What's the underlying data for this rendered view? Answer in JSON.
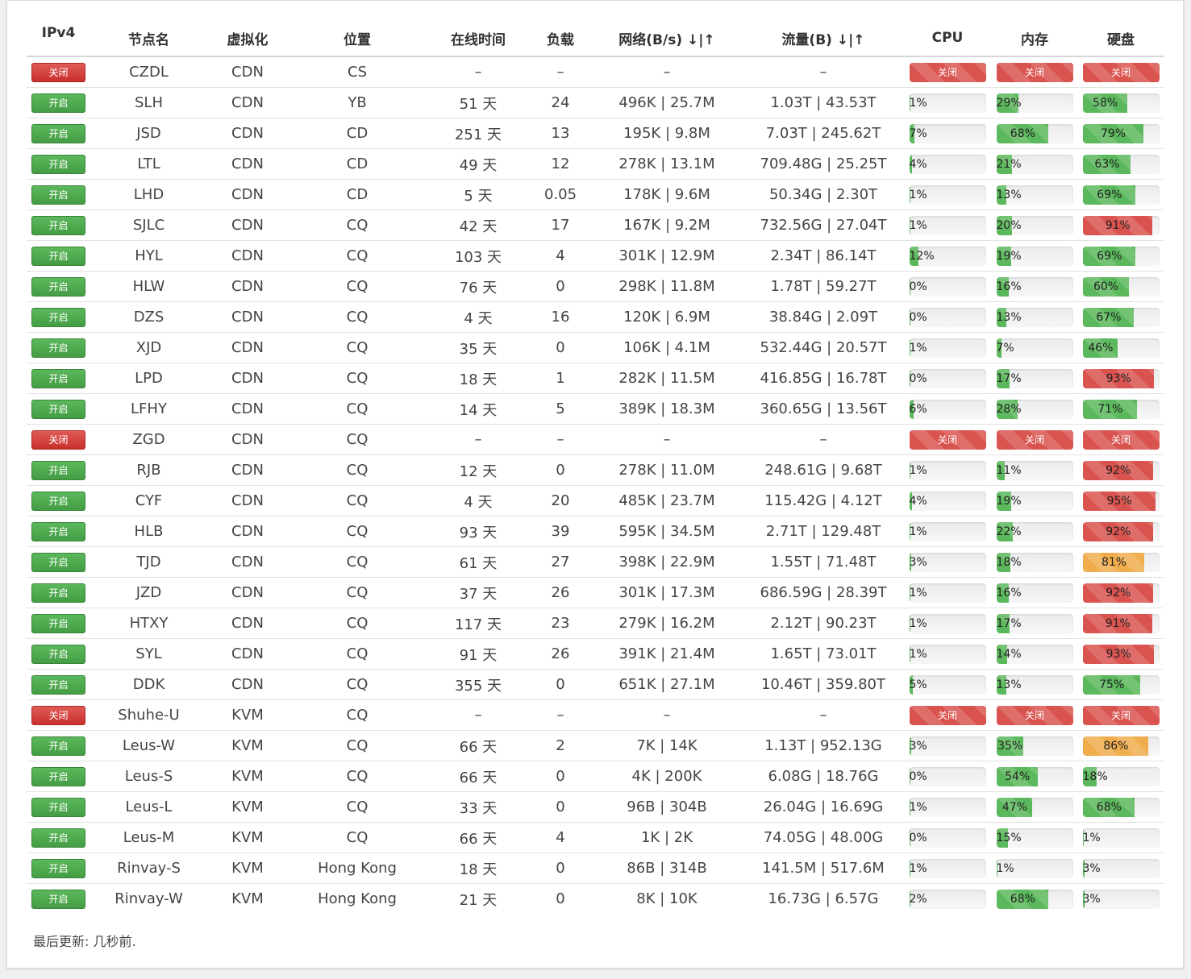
{
  "headers": {
    "ipv4": "IPv4",
    "name": "节点名",
    "virt": "虚拟化",
    "location": "位置",
    "uptime": "在线时间",
    "load": "负载",
    "network": "网络(B/s) ↓|↑",
    "traffic": "流量(B) ↓|↑",
    "cpu": "CPU",
    "mem": "内存",
    "hdd": "硬盘"
  },
  "status_labels": {
    "on": "开启",
    "off": "关闭"
  },
  "colors": {
    "green": "#5cb85c",
    "red": "#d9534f",
    "orange": "#f0ad4e"
  },
  "rows": [
    {
      "status": "off",
      "name": "CZDL",
      "virt": "CDN",
      "location": "CS",
      "uptime": "–",
      "load": "–",
      "network": "–",
      "traffic": "–",
      "cpu": null,
      "mem": null,
      "hdd": null
    },
    {
      "status": "on",
      "name": "SLH",
      "virt": "CDN",
      "location": "YB",
      "uptime": "51 天",
      "load": "24",
      "network": "496K | 25.7M",
      "traffic": "1.03T | 43.53T",
      "cpu": 1,
      "mem": 29,
      "hdd": 58
    },
    {
      "status": "on",
      "name": "JSD",
      "virt": "CDN",
      "location": "CD",
      "uptime": "251 天",
      "load": "13",
      "network": "195K | 9.8M",
      "traffic": "7.03T | 245.62T",
      "cpu": 7,
      "mem": 68,
      "hdd": 79
    },
    {
      "status": "on",
      "name": "LTL",
      "virt": "CDN",
      "location": "CD",
      "uptime": "49 天",
      "load": "12",
      "network": "278K | 13.1M",
      "traffic": "709.48G | 25.25T",
      "cpu": 4,
      "mem": 21,
      "hdd": 63
    },
    {
      "status": "on",
      "name": "LHD",
      "virt": "CDN",
      "location": "CD",
      "uptime": "5 天",
      "load": "0.05",
      "network": "178K | 9.6M",
      "traffic": "50.34G | 2.30T",
      "cpu": 1,
      "mem": 13,
      "hdd": 69
    },
    {
      "status": "on",
      "name": "SJLC",
      "virt": "CDN",
      "location": "CQ",
      "uptime": "42 天",
      "load": "17",
      "network": "167K | 9.2M",
      "traffic": "732.56G | 27.04T",
      "cpu": 1,
      "mem": 20,
      "hdd": 91
    },
    {
      "status": "on",
      "name": "HYL",
      "virt": "CDN",
      "location": "CQ",
      "uptime": "103 天",
      "load": "4",
      "network": "301K | 12.9M",
      "traffic": "2.34T | 86.14T",
      "cpu": 12,
      "mem": 19,
      "hdd": 69
    },
    {
      "status": "on",
      "name": "HLW",
      "virt": "CDN",
      "location": "CQ",
      "uptime": "76 天",
      "load": "0",
      "network": "298K | 11.8M",
      "traffic": "1.78T | 59.27T",
      "cpu": 0,
      "mem": 16,
      "hdd": 60
    },
    {
      "status": "on",
      "name": "DZS",
      "virt": "CDN",
      "location": "CQ",
      "uptime": "4 天",
      "load": "16",
      "network": "120K | 6.9M",
      "traffic": "38.84G | 2.09T",
      "cpu": 0,
      "mem": 13,
      "hdd": 67
    },
    {
      "status": "on",
      "name": "XJD",
      "virt": "CDN",
      "location": "CQ",
      "uptime": "35 天",
      "load": "0",
      "network": "106K | 4.1M",
      "traffic": "532.44G | 20.57T",
      "cpu": 1,
      "mem": 7,
      "hdd": 46
    },
    {
      "status": "on",
      "name": "LPD",
      "virt": "CDN",
      "location": "CQ",
      "uptime": "18 天",
      "load": "1",
      "network": "282K | 11.5M",
      "traffic": "416.85G | 16.78T",
      "cpu": 0,
      "mem": 17,
      "hdd": 93
    },
    {
      "status": "on",
      "name": "LFHY",
      "virt": "CDN",
      "location": "CQ",
      "uptime": "14 天",
      "load": "5",
      "network": "389K | 18.3M",
      "traffic": "360.65G | 13.56T",
      "cpu": 6,
      "mem": 28,
      "hdd": 71
    },
    {
      "status": "off",
      "name": "ZGD",
      "virt": "CDN",
      "location": "CQ",
      "uptime": "–",
      "load": "–",
      "network": "–",
      "traffic": "–",
      "cpu": null,
      "mem": null,
      "hdd": null
    },
    {
      "status": "on",
      "name": "RJB",
      "virt": "CDN",
      "location": "CQ",
      "uptime": "12 天",
      "load": "0",
      "network": "278K | 11.0M",
      "traffic": "248.61G | 9.68T",
      "cpu": 1,
      "mem": 11,
      "hdd": 92
    },
    {
      "status": "on",
      "name": "CYF",
      "virt": "CDN",
      "location": "CQ",
      "uptime": "4 天",
      "load": "20",
      "network": "485K | 23.7M",
      "traffic": "115.42G | 4.12T",
      "cpu": 4,
      "mem": 19,
      "hdd": 95
    },
    {
      "status": "on",
      "name": "HLB",
      "virt": "CDN",
      "location": "CQ",
      "uptime": "93 天",
      "load": "39",
      "network": "595K | 34.5M",
      "traffic": "2.71T | 129.48T",
      "cpu": 1,
      "mem": 22,
      "hdd": 92
    },
    {
      "status": "on",
      "name": "TJD",
      "virt": "CDN",
      "location": "CQ",
      "uptime": "61 天",
      "load": "27",
      "network": "398K | 22.9M",
      "traffic": "1.55T | 71.48T",
      "cpu": 3,
      "mem": 18,
      "hdd": 81
    },
    {
      "status": "on",
      "name": "JZD",
      "virt": "CDN",
      "location": "CQ",
      "uptime": "37 天",
      "load": "26",
      "network": "301K | 17.3M",
      "traffic": "686.59G | 28.39T",
      "cpu": 1,
      "mem": 16,
      "hdd": 92
    },
    {
      "status": "on",
      "name": "HTXY",
      "virt": "CDN",
      "location": "CQ",
      "uptime": "117 天",
      "load": "23",
      "network": "279K | 16.2M",
      "traffic": "2.12T | 90.23T",
      "cpu": 1,
      "mem": 17,
      "hdd": 91
    },
    {
      "status": "on",
      "name": "SYL",
      "virt": "CDN",
      "location": "CQ",
      "uptime": "91 天",
      "load": "26",
      "network": "391K | 21.4M",
      "traffic": "1.65T | 73.01T",
      "cpu": 1,
      "mem": 14,
      "hdd": 93
    },
    {
      "status": "on",
      "name": "DDK",
      "virt": "CDN",
      "location": "CQ",
      "uptime": "355 天",
      "load": "0",
      "network": "651K | 27.1M",
      "traffic": "10.46T | 359.80T",
      "cpu": 5,
      "mem": 13,
      "hdd": 75
    },
    {
      "status": "off",
      "name": "Shuhe-U",
      "virt": "KVM",
      "location": "CQ",
      "uptime": "–",
      "load": "–",
      "network": "–",
      "traffic": "–",
      "cpu": null,
      "mem": null,
      "hdd": null
    },
    {
      "status": "on",
      "name": "Leus-W",
      "virt": "KVM",
      "location": "CQ",
      "uptime": "66 天",
      "load": "2",
      "network": "7K | 14K",
      "traffic": "1.13T | 952.13G",
      "cpu": 3,
      "mem": 35,
      "hdd": 86
    },
    {
      "status": "on",
      "name": "Leus-S",
      "virt": "KVM",
      "location": "CQ",
      "uptime": "66 天",
      "load": "0",
      "network": "4K | 200K",
      "traffic": "6.08G | 18.76G",
      "cpu": 0,
      "mem": 54,
      "hdd": 18
    },
    {
      "status": "on",
      "name": "Leus-L",
      "virt": "KVM",
      "location": "CQ",
      "uptime": "33 天",
      "load": "0",
      "network": "96B | 304B",
      "traffic": "26.04G | 16.69G",
      "cpu": 1,
      "mem": 47,
      "hdd": 68
    },
    {
      "status": "on",
      "name": "Leus-M",
      "virt": "KVM",
      "location": "CQ",
      "uptime": "66 天",
      "load": "4",
      "network": "1K | 2K",
      "traffic": "74.05G | 48.00G",
      "cpu": 0,
      "mem": 15,
      "hdd": 1
    },
    {
      "status": "on",
      "name": "Rinvay-S",
      "virt": "KVM",
      "location": "Hong Kong",
      "uptime": "18 天",
      "load": "0",
      "network": "86B | 314B",
      "traffic": "141.5M | 517.6M",
      "cpu": 1,
      "mem": 1,
      "hdd": 3
    },
    {
      "status": "on",
      "name": "Rinvay-W",
      "virt": "KVM",
      "location": "Hong Kong",
      "uptime": "21 天",
      "load": "0",
      "network": "8K | 10K",
      "traffic": "16.73G | 6.57G",
      "cpu": 2,
      "mem": 68,
      "hdd": 3
    }
  ],
  "footer": {
    "text": "最后更新: 几秒前."
  }
}
